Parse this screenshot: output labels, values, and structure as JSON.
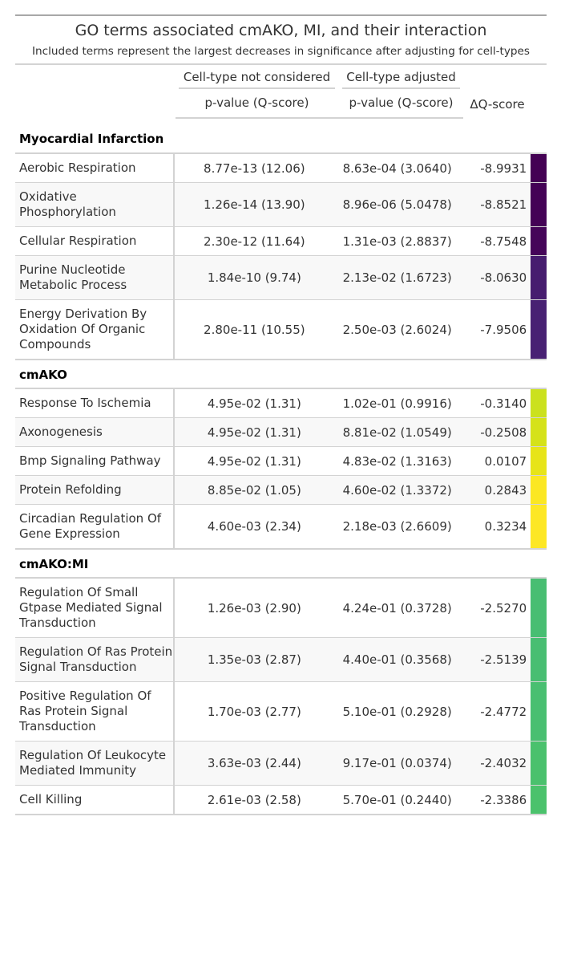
{
  "title": "GO terms associated cmAKO, MI, and their interaction",
  "subtitle": "Included terms represent the largest decreases in significance after adjusting for cell-types",
  "spanners": {
    "not_considered": "Cell-type not considered",
    "adjusted": "Cell-type adjusted"
  },
  "columns": {
    "pvalue_1": "p-value (Q-score)",
    "pvalue_2": "p-value (Q-score)",
    "delta": "ΔQ-score"
  },
  "groups": [
    {
      "label": "Myocardial Infarction",
      "rows": [
        {
          "term": "Aerobic Respiration",
          "p1": "8.77e-13 (12.06)",
          "p2": "8.63e-04 (3.0640)",
          "dq": "-8.9931",
          "color": "#440154"
        },
        {
          "term": "Oxidative Phosphorylation",
          "p1": "1.26e-14 (13.90)",
          "p2": "8.96e-06 (5.0478)",
          "dq": "-8.8521",
          "color": "#440256"
        },
        {
          "term": "Cellular Respiration",
          "p1": "2.30e-12 (11.64)",
          "p2": "1.31e-03 (2.8837)",
          "dq": "-8.7548",
          "color": "#450559"
        },
        {
          "term": "Purine Nucleotide Metabolic Process",
          "p1": "1.84e-10 (9.74)",
          "p2": "2.13e-02 (1.6723)",
          "dq": "-8.0630",
          "color": "#471d6f"
        },
        {
          "term": "Energy Derivation By Oxidation Of Organic Compounds",
          "p1": "2.80e-11 (10.55)",
          "p2": "2.50e-03 (2.6024)",
          "dq": "-7.9506",
          "color": "#482173"
        }
      ]
    },
    {
      "label": "cmAKO",
      "rows": [
        {
          "term": "Response To Ischemia",
          "p1": "4.95e-02 (1.31)",
          "p2": "1.02e-01 (0.9916)",
          "dq": "-0.3140",
          "color": "#cbe11e"
        },
        {
          "term": "Axonogenesis",
          "p1": "4.95e-02 (1.31)",
          "p2": "8.81e-02 (1.0549)",
          "dq": "-0.2508",
          "color": "#d5e21a"
        },
        {
          "term": "Bmp Signaling Pathway",
          "p1": "4.95e-02 (1.31)",
          "p2": "4.83e-02 (1.3163)",
          "dq": "0.0107",
          "color": "#e7e419"
        },
        {
          "term": "Protein Refolding",
          "p1": "8.85e-02 (1.05)",
          "p2": "4.60e-02 (1.3372)",
          "dq": "0.2843",
          "color": "#fbe723"
        },
        {
          "term": "Circadian Regulation Of Gene Expression",
          "p1": "4.60e-03 (2.34)",
          "p2": "2.18e-03 (2.6609)",
          "dq": "0.3234",
          "color": "#fde725"
        }
      ]
    },
    {
      "label": "cmAKO:MI",
      "rows": [
        {
          "term": "Regulation Of Small Gtpase Mediated Signal Transduction",
          "p1": "1.26e-03 (2.90)",
          "p2": "4.24e-01 (0.3728)",
          "dq": "-2.5270",
          "color": "#48be72"
        },
        {
          "term": "Regulation Of Ras Protein Signal Transduction",
          "p1": "1.35e-03 (2.87)",
          "p2": "4.40e-01 (0.3568)",
          "dq": "-2.5139",
          "color": "#48be72"
        },
        {
          "term": "Positive Regulation Of Ras Protein Signal Transduction",
          "p1": "1.70e-03 (2.77)",
          "p2": "5.10e-01 (0.2928)",
          "dq": "-2.4772",
          "color": "#49bf71"
        },
        {
          "term": "Regulation Of Leukocyte Mediated Immunity",
          "p1": "3.63e-03 (2.44)",
          "p2": "9.17e-01 (0.0374)",
          "dq": "-2.4032",
          "color": "#4ac16d"
        },
        {
          "term": "Cell Killing",
          "p1": "2.61e-03 (2.58)",
          "p2": "5.70e-01 (0.2440)",
          "dq": "-2.3386",
          "color": "#4bc26c"
        }
      ]
    }
  ]
}
